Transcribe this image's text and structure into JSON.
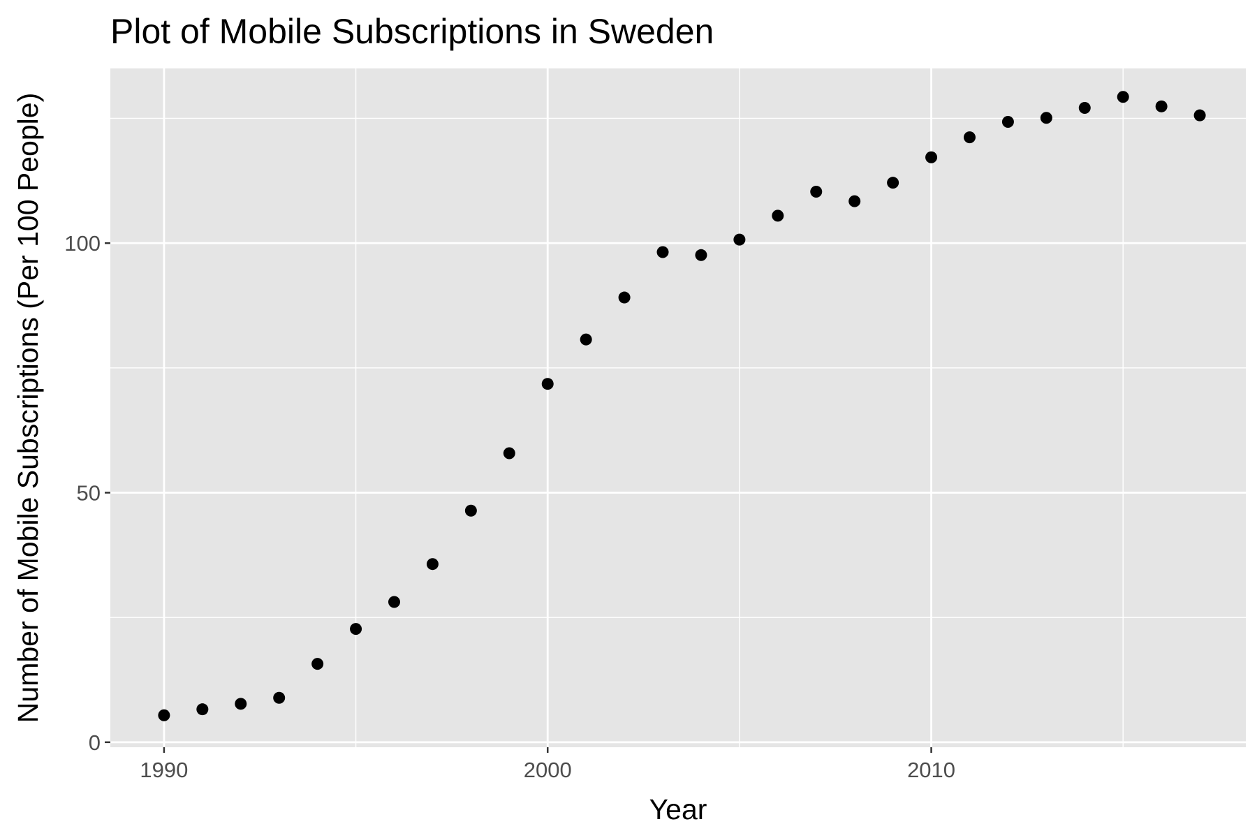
{
  "chart_data": {
    "type": "scatter",
    "title": "Plot of Mobile Subscriptions in Sweden",
    "xlabel": "Year",
    "ylabel": "Number of Mobile Subscriptions (Per 100 People)",
    "xlim": [
      1988.6,
      2018.2
    ],
    "ylim": [
      -1,
      135
    ],
    "x_ticks": [
      1990,
      2000,
      2010
    ],
    "x_tick_labels": [
      "1990",
      "2000",
      "2010"
    ],
    "x_minor": [
      1995,
      2005,
      2015
    ],
    "y_ticks": [
      0,
      50,
      100
    ],
    "y_tick_labels": [
      "0",
      "50",
      "100"
    ],
    "y_minor": [
      25,
      75,
      125
    ],
    "grid": true,
    "legend": "none",
    "series": [
      {
        "x": [
          1990,
          1991,
          1992,
          1993,
          1994,
          1995,
          1996,
          1997,
          1998,
          1999,
          2000,
          2001,
          2002,
          2003,
          2004,
          2005,
          2006,
          2007,
          2008,
          2009,
          2010,
          2011,
          2012,
          2013,
          2014,
          2015,
          2016,
          2017
        ],
        "y": [
          5.4,
          6.6,
          7.7,
          8.9,
          15.7,
          22.7,
          28.1,
          35.7,
          46.4,
          57.9,
          71.8,
          80.7,
          89.1,
          98.2,
          97.6,
          100.7,
          105.5,
          110.3,
          108.4,
          112.1,
          117.2,
          121.2,
          124.3,
          125.1,
          127.1,
          129.3,
          127.4,
          125.6
        ]
      }
    ],
    "colors": {
      "panel_background": "#e5e5e5",
      "grid": "#ffffff",
      "point": "#000000",
      "tick_text": "#4d4d4d",
      "tick_mark": "#333333"
    }
  }
}
